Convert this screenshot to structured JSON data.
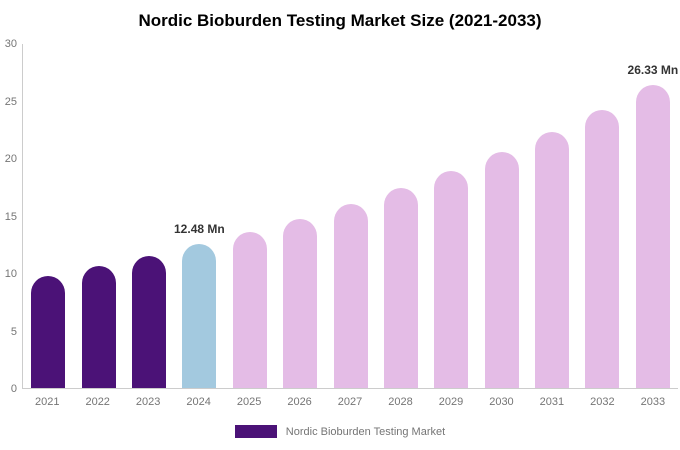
{
  "chart_data": {
    "type": "bar",
    "title": "Nordic Bioburden Testing Market Size (2021-2033)",
    "categories": [
      "2021",
      "2022",
      "2023",
      "2024",
      "2025",
      "2026",
      "2027",
      "2028",
      "2029",
      "2030",
      "2031",
      "2032",
      "2033"
    ],
    "values": [
      9.7,
      10.6,
      11.5,
      12.48,
      13.6,
      14.7,
      16.0,
      17.4,
      18.9,
      20.5,
      22.3,
      24.2,
      26.33
    ],
    "unit": "Mn",
    "ylim": [
      0,
      30
    ],
    "yticks": [
      0,
      5,
      10,
      15,
      20,
      25,
      30
    ],
    "grid": false,
    "legend_position": "bottom",
    "legend_label": "Nordic Bioburden Testing Market",
    "annotations": [
      {
        "category": "2024",
        "text": "12.48 Mn"
      },
      {
        "category": "2033",
        "text": "26.33 Mn"
      }
    ],
    "bar_roles": [
      "historical",
      "historical",
      "historical",
      "highlight",
      "forecast",
      "forecast",
      "forecast",
      "forecast",
      "forecast",
      "forecast",
      "forecast",
      "forecast",
      "forecast"
    ],
    "colors": {
      "historical": "#4B1277",
      "highlight": "#A3C9DF",
      "forecast": "#E4BCE6",
      "axis_line": "#cccccc",
      "tick_text": "#757575",
      "value_label_text": "#333333",
      "title_text": "#000000"
    }
  }
}
